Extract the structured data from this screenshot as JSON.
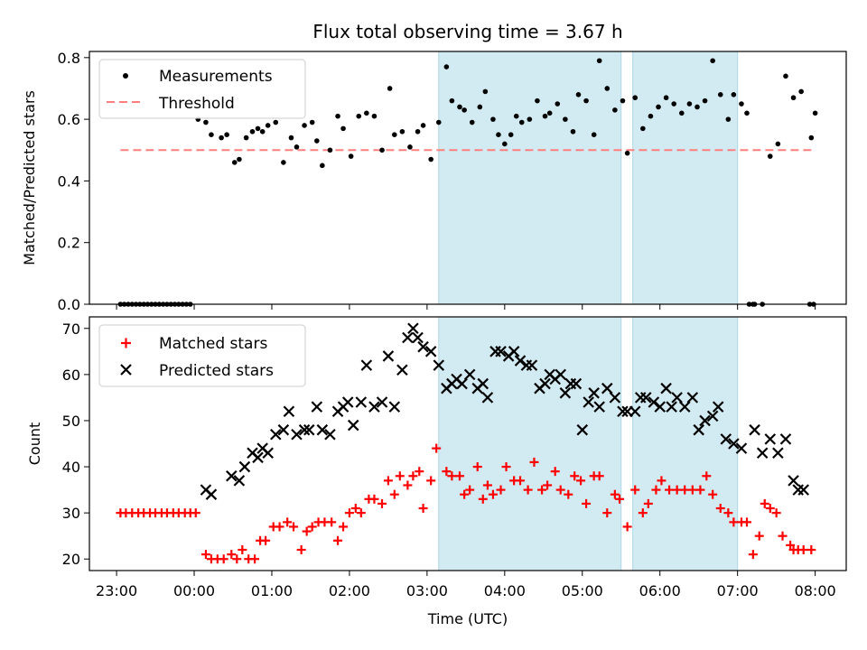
{
  "figure": {
    "title": "Flux total observing time = 3.67 h"
  },
  "chart_data": [
    {
      "type": "scatter",
      "panel": "top",
      "title": "Flux total observing time = 3.67 h",
      "xlabel": "",
      "ylabel": "Matched/Predicted stars",
      "ylim": [
        0,
        0.82
      ],
      "yticks": [
        0.0,
        0.2,
        0.4,
        0.6,
        0.8
      ],
      "ytick_labels": [
        "0.0",
        "0.2",
        "0.4",
        "0.6",
        "0.8"
      ],
      "legend_position": "top-left",
      "grid": false,
      "shaded_intervals_hours": [
        [
          3.15,
          5.5
        ],
        [
          5.65,
          7.0
        ]
      ],
      "shade_color": "#add8e6",
      "series": [
        {
          "name": "Measurements",
          "kind": "points",
          "color": "#000000",
          "x": [
            -0.95,
            -0.9,
            -0.85,
            -0.8,
            -0.75,
            -0.7,
            -0.65,
            -0.6,
            -0.55,
            -0.5,
            -0.45,
            -0.4,
            -0.35,
            -0.3,
            -0.25,
            -0.2,
            -0.15,
            -0.1,
            -0.05,
            0.05,
            0.15,
            0.22,
            0.35,
            0.42,
            0.52,
            0.58,
            0.67,
            0.75,
            0.82,
            0.88,
            0.95,
            1.05,
            1.15,
            1.25,
            1.32,
            1.42,
            1.52,
            1.58,
            1.65,
            1.75,
            1.85,
            1.92,
            2.02,
            2.12,
            2.22,
            2.32,
            2.42,
            2.52,
            2.58,
            2.68,
            2.78,
            2.88,
            2.95,
            3.05,
            3.15,
            3.25,
            3.32,
            3.42,
            3.48,
            3.58,
            3.68,
            3.75,
            3.85,
            3.92,
            4.0,
            4.08,
            4.15,
            4.22,
            4.32,
            4.42,
            4.52,
            4.58,
            4.68,
            4.78,
            4.88,
            4.95,
            5.05,
            5.15,
            5.22,
            5.32,
            5.42,
            5.52,
            5.58,
            5.68,
            5.78,
            5.88,
            5.98,
            6.08,
            6.18,
            6.28,
            6.38,
            6.48,
            6.58,
            6.68,
            6.78,
            6.88,
            6.95,
            7.05,
            7.12,
            7.22,
            7.32,
            7.42,
            7.52,
            7.62,
            7.72,
            7.82,
            7.95,
            8.0
          ],
          "y": [
            0,
            0,
            0,
            0,
            0,
            0,
            0,
            0,
            0,
            0,
            0,
            0,
            0,
            0,
            0,
            0,
            0,
            0,
            0,
            0.6,
            0.59,
            0.55,
            0.54,
            0.55,
            0.46,
            0.47,
            0.54,
            0.56,
            0.57,
            0.56,
            0.58,
            0.59,
            0.46,
            0.54,
            0.51,
            0.58,
            0.59,
            0.53,
            0.45,
            0.5,
            0.61,
            0.57,
            0.48,
            0.61,
            0.62,
            0.61,
            0.5,
            0.7,
            0.55,
            0.56,
            0.51,
            0.56,
            0.58,
            0.47,
            0.59,
            0.77,
            0.66,
            0.64,
            0.63,
            0.59,
            0.64,
            0.69,
            0.6,
            0.55,
            0.52,
            0.55,
            0.61,
            0.59,
            0.6,
            0.66,
            0.61,
            0.62,
            0.65,
            0.6,
            0.56,
            0.68,
            0.66,
            0.55,
            0.79,
            0.7,
            0.63,
            0.66,
            0.49,
            0.67,
            0.57,
            0.61,
            0.64,
            0.67,
            0.65,
            0.62,
            0.65,
            0.64,
            0.66,
            0.79,
            0.68,
            0.6,
            0.68,
            0.65,
            0.62,
            0.0,
            0.0,
            0.48,
            0.52,
            0.74,
            0.67,
            0.69,
            0.54,
            0.62
          ],
          "zero_tail_x": [
            7.15,
            7.2,
            7.93,
            7.98
          ],
          "zero_tail_y": [
            0,
            0,
            0,
            0
          ]
        },
        {
          "name": "Threshold",
          "kind": "dashed-line",
          "color": "#ff7f7f",
          "x": [
            -0.95,
            7.95
          ],
          "y": [
            0.5,
            0.5
          ]
        }
      ]
    },
    {
      "type": "scatter",
      "panel": "bottom",
      "xlabel": "Time (UTC)",
      "ylabel": "Count",
      "ylim": [
        17.5,
        72.5
      ],
      "yticks": [
        20,
        30,
        40,
        50,
        60,
        70
      ],
      "ytick_labels": [
        "20",
        "30",
        "40",
        "50",
        "60",
        "70"
      ],
      "xlim": [
        -1.35,
        8.4
      ],
      "xticks": [
        -1,
        0,
        1,
        2,
        3,
        4,
        5,
        6,
        7,
        8
      ],
      "xtick_labels": [
        "23:00",
        "00:00",
        "01:00",
        "02:00",
        "03:00",
        "04:00",
        "05:00",
        "06:00",
        "07:00",
        "08:00"
      ],
      "legend_position": "top-left",
      "grid": false,
      "shaded_intervals_hours": [
        [
          3.15,
          5.5
        ],
        [
          5.65,
          7.0
        ]
      ],
      "shade_color": "#add8e6",
      "series": [
        {
          "name": "Matched stars",
          "kind": "plus",
          "color": "#ff0000",
          "x": [
            -0.95,
            -0.88,
            -0.8,
            -0.72,
            -0.65,
            -0.57,
            -0.5,
            -0.42,
            -0.35,
            -0.27,
            -0.2,
            -0.12,
            -0.05,
            0.02,
            0.15,
            0.22,
            0.3,
            0.38,
            0.48,
            0.55,
            0.62,
            0.7,
            0.78,
            0.85,
            0.92,
            1.02,
            1.1,
            1.2,
            1.28,
            1.38,
            1.45,
            1.52,
            1.6,
            1.68,
            1.77,
            1.85,
            1.92,
            2.0,
            2.08,
            2.15,
            2.25,
            2.32,
            2.42,
            2.5,
            2.58,
            2.65,
            2.75,
            2.82,
            2.9,
            2.95,
            3.05,
            3.12,
            3.25,
            3.32,
            3.42,
            3.48,
            3.55,
            3.65,
            3.72,
            3.78,
            3.85,
            3.95,
            4.02,
            4.12,
            4.2,
            4.3,
            4.38,
            4.48,
            4.55,
            4.65,
            4.72,
            4.82,
            4.9,
            4.98,
            5.05,
            5.15,
            5.22,
            5.32,
            5.42,
            5.48,
            5.58,
            5.68,
            5.78,
            5.85,
            5.95,
            6.02,
            6.12,
            6.22,
            6.32,
            6.42,
            6.52,
            6.6,
            6.68,
            6.78,
            6.88,
            6.95,
            7.05,
            7.12,
            7.2,
            7.28,
            7.35,
            7.42,
            7.5,
            7.58,
            7.68,
            7.72,
            7.78,
            7.85,
            7.95
          ],
          "y": [
            30,
            30,
            30,
            30,
            30,
            30,
            30,
            30,
            30,
            30,
            30,
            30,
            30,
            30,
            21,
            20,
            20,
            20,
            21,
            20,
            22,
            20,
            20,
            24,
            24,
            27,
            27,
            28,
            27,
            22,
            26,
            27,
            28,
            28,
            28,
            24,
            27,
            30,
            31,
            30,
            33,
            33,
            32,
            37,
            34,
            38,
            36,
            38,
            39,
            31,
            37,
            44,
            39,
            38,
            38,
            34,
            35,
            40,
            33,
            36,
            34,
            35,
            40,
            37,
            37,
            35,
            41,
            35,
            36,
            39,
            35,
            34,
            38,
            37,
            32,
            38,
            38,
            30,
            34,
            33,
            27,
            35,
            30,
            32,
            35,
            37,
            35,
            35,
            35,
            35,
            35,
            38,
            34,
            31,
            30,
            28,
            28,
            28,
            21,
            25,
            32,
            31,
            30,
            25,
            23,
            22,
            22,
            22,
            22
          ]
        },
        {
          "name": "Predicted stars",
          "kind": "x",
          "color": "#000000",
          "x": [
            0.15,
            0.22,
            0.48,
            0.58,
            0.65,
            0.75,
            0.82,
            0.88,
            0.95,
            1.05,
            1.15,
            1.22,
            1.32,
            1.42,
            1.48,
            1.58,
            1.65,
            1.75,
            1.85,
            1.92,
            1.98,
            2.05,
            2.15,
            2.22,
            2.32,
            2.42,
            2.5,
            2.58,
            2.68,
            2.75,
            2.82,
            2.88,
            2.95,
            3.05,
            3.15,
            3.25,
            3.32,
            3.38,
            3.45,
            3.55,
            3.65,
            3.72,
            3.78,
            3.88,
            3.95,
            4.05,
            4.12,
            4.2,
            4.28,
            4.35,
            4.45,
            4.52,
            4.58,
            4.65,
            4.72,
            4.78,
            4.85,
            4.92,
            5.0,
            5.08,
            5.15,
            5.22,
            5.32,
            5.42,
            5.52,
            5.58,
            5.68,
            5.75,
            5.82,
            5.92,
            6.0,
            6.08,
            6.15,
            6.22,
            6.32,
            6.42,
            6.5,
            6.58,
            6.68,
            6.75,
            6.85,
            6.95,
            7.05,
            7.22,
            7.32,
            7.42,
            7.52,
            7.62,
            7.72,
            7.78,
            7.85
          ],
          "y": [
            35,
            34,
            38,
            37,
            40,
            43,
            42,
            44,
            43,
            47,
            48,
            52,
            47,
            48,
            48,
            53,
            48,
            47,
            52,
            53,
            54,
            49,
            54,
            62,
            53,
            54,
            64,
            53,
            61,
            68,
            70,
            68,
            66,
            65,
            62,
            57,
            58,
            59,
            58,
            60,
            57,
            58,
            55,
            65,
            65,
            64,
            65,
            63,
            62,
            62,
            57,
            58,
            60,
            59,
            60,
            56,
            58,
            58,
            48,
            54,
            56,
            53,
            57,
            55,
            52,
            52,
            52,
            55,
            55,
            54,
            53,
            57,
            53,
            55,
            53,
            55,
            48,
            50,
            51,
            53,
            46,
            45,
            44,
            48,
            43,
            46,
            43,
            46,
            37,
            35,
            35
          ]
        }
      ]
    }
  ]
}
